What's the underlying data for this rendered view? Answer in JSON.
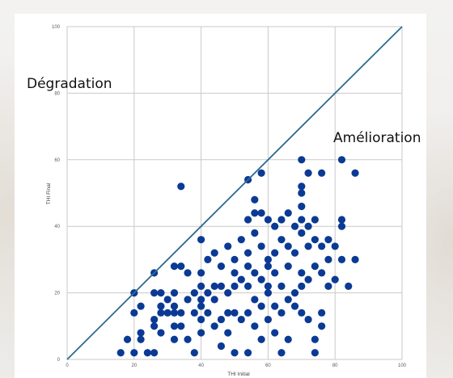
{
  "colors": {
    "point": "#0b3a94",
    "diagonal": "#2e6a8f",
    "grid": "#c9c9c9",
    "background": "#ffffff"
  },
  "annotations": {
    "upper": "Dégradation",
    "lower": "Amélioration"
  },
  "chart_data": {
    "type": "scatter",
    "title": "",
    "xlabel": "THI Initial",
    "ylabel": "THI Final",
    "xlim": [
      0,
      100
    ],
    "ylim": [
      0,
      100
    ],
    "x_ticks": [
      "0",
      "20",
      "40",
      "60",
      "80",
      "100"
    ],
    "y_ticks": [
      "0",
      "20",
      "40",
      "60",
      "80",
      "100"
    ],
    "grid": true,
    "reference_line": {
      "from": [
        0,
        0
      ],
      "to": [
        100,
        100
      ]
    },
    "points": [
      [
        16,
        2
      ],
      [
        20,
        2
      ],
      [
        24,
        2
      ],
      [
        26,
        2
      ],
      [
        38,
        2
      ],
      [
        46,
        4
      ],
      [
        50,
        2
      ],
      [
        54,
        2
      ],
      [
        64,
        2
      ],
      [
        74,
        2
      ],
      [
        74,
        6
      ],
      [
        18,
        6
      ],
      [
        22,
        6
      ],
      [
        22,
        8
      ],
      [
        28,
        8
      ],
      [
        32,
        6
      ],
      [
        36,
        6
      ],
      [
        34,
        10
      ],
      [
        40,
        8
      ],
      [
        44,
        10
      ],
      [
        48,
        8
      ],
      [
        56,
        10
      ],
      [
        58,
        6
      ],
      [
        62,
        8
      ],
      [
        66,
        6
      ],
      [
        76,
        10
      ],
      [
        20,
        14
      ],
      [
        22,
        16
      ],
      [
        26,
        10
      ],
      [
        26,
        12
      ],
      [
        28,
        14
      ],
      [
        28,
        16
      ],
      [
        30,
        14
      ],
      [
        30,
        18
      ],
      [
        32,
        10
      ],
      [
        32,
        14
      ],
      [
        32,
        16
      ],
      [
        34,
        14
      ],
      [
        36,
        18
      ],
      [
        38,
        14
      ],
      [
        40,
        12
      ],
      [
        40,
        16
      ],
      [
        42,
        14
      ],
      [
        44,
        18
      ],
      [
        46,
        12
      ],
      [
        48,
        14
      ],
      [
        50,
        14
      ],
      [
        52,
        12
      ],
      [
        54,
        14
      ],
      [
        56,
        18
      ],
      [
        58,
        16
      ],
      [
        60,
        12
      ],
      [
        62,
        16
      ],
      [
        64,
        14
      ],
      [
        66,
        18
      ],
      [
        68,
        16
      ],
      [
        70,
        14
      ],
      [
        72,
        12
      ],
      [
        76,
        14
      ],
      [
        20,
        20
      ],
      [
        26,
        20
      ],
      [
        28,
        20
      ],
      [
        32,
        20
      ],
      [
        36,
        26
      ],
      [
        38,
        20
      ],
      [
        40,
        18
      ],
      [
        40,
        22
      ],
      [
        42,
        20
      ],
      [
        44,
        22
      ],
      [
        46,
        22
      ],
      [
        48,
        20
      ],
      [
        50,
        22
      ],
      [
        50,
        26
      ],
      [
        52,
        24
      ],
      [
        54,
        22
      ],
      [
        54,
        28
      ],
      [
        56,
        26
      ],
      [
        58,
        24
      ],
      [
        60,
        20
      ],
      [
        60,
        22
      ],
      [
        62,
        26
      ],
      [
        64,
        22
      ],
      [
        66,
        28
      ],
      [
        68,
        20
      ],
      [
        70,
        22
      ],
      [
        70,
        26
      ],
      [
        72,
        24
      ],
      [
        74,
        28
      ],
      [
        76,
        26
      ],
      [
        78,
        22
      ],
      [
        78,
        30
      ],
      [
        80,
        24
      ],
      [
        82,
        30
      ],
      [
        84,
        22
      ],
      [
        86,
        30
      ],
      [
        26,
        26
      ],
      [
        32,
        28
      ],
      [
        34,
        28
      ],
      [
        40,
        26
      ],
      [
        42,
        30
      ],
      [
        44,
        32
      ],
      [
        46,
        28
      ],
      [
        48,
        34
      ],
      [
        50,
        30
      ],
      [
        52,
        36
      ],
      [
        54,
        32
      ],
      [
        56,
        38
      ],
      [
        58,
        34
      ],
      [
        60,
        28
      ],
      [
        60,
        30
      ],
      [
        62,
        32
      ],
      [
        64,
        36
      ],
      [
        66,
        34
      ],
      [
        68,
        32
      ],
      [
        70,
        38
      ],
      [
        72,
        34
      ],
      [
        74,
        36
      ],
      [
        76,
        34
      ],
      [
        78,
        36
      ],
      [
        80,
        34
      ],
      [
        82,
        42
      ],
      [
        40,
        36
      ],
      [
        34,
        52
      ],
      [
        54,
        42
      ],
      [
        56,
        44
      ],
      [
        58,
        44
      ],
      [
        60,
        42
      ],
      [
        62,
        40
      ],
      [
        64,
        42
      ],
      [
        66,
        44
      ],
      [
        68,
        40
      ],
      [
        70,
        42
      ],
      [
        70,
        46
      ],
      [
        72,
        40
      ],
      [
        74,
        42
      ],
      [
        82,
        40
      ],
      [
        56,
        48
      ],
      [
        54,
        54
      ],
      [
        58,
        56
      ],
      [
        70,
        50
      ],
      [
        70,
        52
      ],
      [
        72,
        56
      ],
      [
        76,
        56
      ],
      [
        70,
        60
      ],
      [
        82,
        60
      ],
      [
        86,
        56
      ]
    ]
  }
}
